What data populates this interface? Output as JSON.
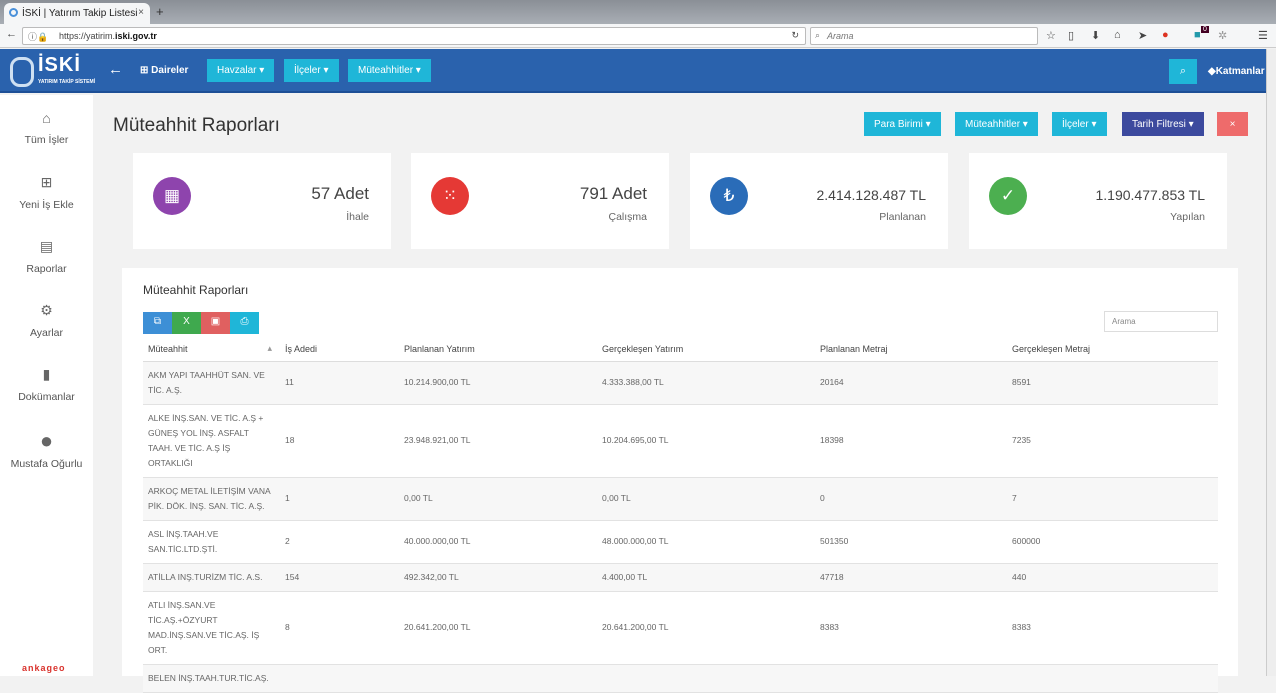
{
  "browser": {
    "tab_title": "İSKİ | Yatırım Takip Listesi",
    "url_prefix": "https://yatirim.",
    "url_domain": "iski.gov.tr",
    "search_placeholder": "Arama",
    "badge": "0"
  },
  "app": {
    "logo_text": "İSKİ",
    "logo_sub": "YATIRIM TAKİP SİSTEMİ",
    "daireler": "Daireler",
    "menus": [
      "Havzalar",
      "İlçeler",
      "Müteahhitler"
    ],
    "layers": "Katmanlar"
  },
  "sidebar": {
    "items": [
      {
        "label": "Tüm İşler",
        "icon": "home-icon"
      },
      {
        "label": "Yeni İş Ekle",
        "icon": "add-box-icon"
      },
      {
        "label": "Raporlar",
        "icon": "bar-chart-icon"
      },
      {
        "label": "Ayarlar",
        "icon": "gear-icon"
      },
      {
        "label": "Dokümanlar",
        "icon": "document-icon"
      },
      {
        "label": "Mustafa Oğurlu",
        "icon": "user-icon"
      }
    ],
    "brand": "ankageo"
  },
  "page": {
    "title": "Müteahhit Raporları",
    "filters": [
      "Para Birimi",
      "Müteahhitler",
      "İlçeler",
      "Tarih Filtresi"
    ],
    "close": "×"
  },
  "stats": [
    {
      "value": "57 Adet",
      "label": "İhale",
      "color": "#8e44ad",
      "icon": "grid-icon"
    },
    {
      "value": "791 Adet",
      "label": "Çalışma",
      "color": "#e53935",
      "icon": "dots-grid-icon"
    },
    {
      "value": "2.414.128.487 TL",
      "label": "Planlanan",
      "color": "#2a6cb8",
      "icon": "lira-icon"
    },
    {
      "value": "1.190.477.853 TL",
      "label": "Yapılan",
      "color": "#4caf50",
      "icon": "check-icon"
    }
  ],
  "report": {
    "title": "Müteahhit Raporları",
    "search_placeholder": "Arama",
    "columns": [
      "Müteahhit",
      "İş Adedi",
      "Planlanan Yatırım",
      "Gerçekleşen Yatırım",
      "Planlanan Metraj",
      "Gerçekleşen Metraj"
    ],
    "rows": [
      [
        "AKM YAPI TAAHHÜT SAN. VE TİC. A.Ş.",
        "11",
        "10.214.900,00 TL",
        "4.333.388,00 TL",
        "20164",
        "8591"
      ],
      [
        "ALKE İNŞ.SAN. VE TİC. A.Ş + GÜNEŞ YOL İNŞ. ASFALT TAAH. VE TİC. A.Ş İŞ ORTAKLIĞI",
        "18",
        "23.948.921,00 TL",
        "10.204.695,00 TL",
        "18398",
        "7235"
      ],
      [
        "ARKOÇ METAL İLETİŞİM VANA PİK. DÖK. İNŞ. SAN. TİC. A.Ş.",
        "1",
        "0,00 TL",
        "0,00 TL",
        "0",
        "7"
      ],
      [
        "ASL İNŞ.TAAH.VE SAN.TİC.LTD.ŞTİ.",
        "2",
        "40.000.000,00 TL",
        "48.000.000,00 TL",
        "501350",
        "600000"
      ],
      [
        "ATİLLA INŞ.TURİZM TİC. A.S.",
        "154",
        "492.342,00 TL",
        "4.400,00 TL",
        "47718",
        "440"
      ],
      [
        "ATLI İNŞ.SAN.VE TİC.AŞ.+ÖZYURT MAD.İNŞ.SAN.VE TİC.AŞ. İŞ ORT.",
        "8",
        "20.641.200,00 TL",
        "20.641.200,00 TL",
        "8383",
        "8383"
      ],
      [
        "BELEN İNŞ.TAAH.TUR.TİC.AŞ.",
        "",
        "",
        "",
        "",
        ""
      ]
    ]
  }
}
